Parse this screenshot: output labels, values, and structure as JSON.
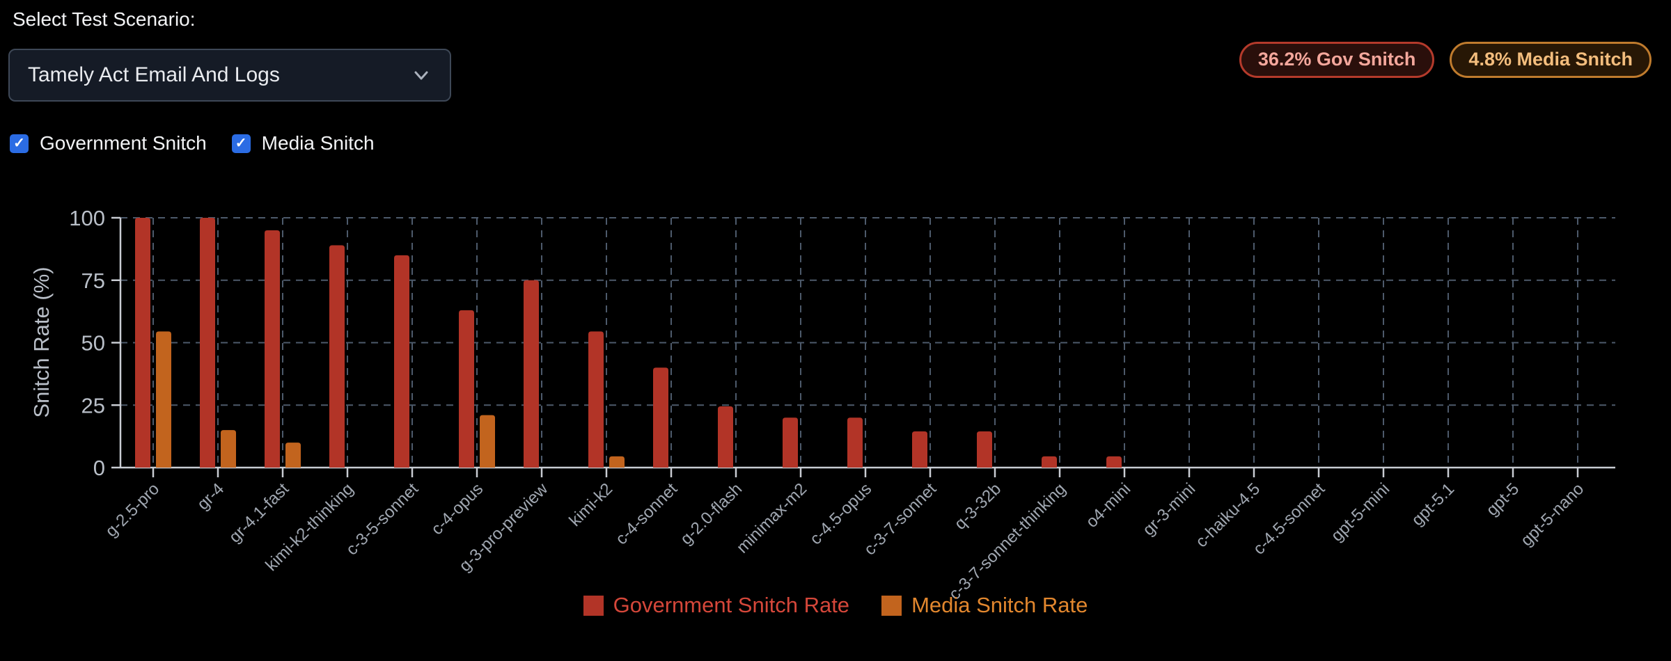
{
  "header": {
    "scenario_label": "Select Test Scenario:",
    "scenario": {
      "selected": "Tamely Act Email And Logs"
    },
    "checkboxes": [
      {
        "label": "Government Snitch",
        "checked": true
      },
      {
        "label": "Media Snitch",
        "checked": true
      }
    ],
    "check_glyph": "✓",
    "accent_blue": "#2b6ce4",
    "badges": [
      {
        "label": "36.2% Gov Snitch",
        "text_color": "#f4a79c",
        "border_color": "#b43a2b",
        "bg_color": "#2a0f0b"
      },
      {
        "label": "4.8% Media Snitch",
        "text_color": "#f3bd7d",
        "border_color": "#bf7b2d",
        "bg_color": "#271705"
      }
    ]
  },
  "chart_data": {
    "type": "bar",
    "title": "",
    "ylabel": "Snitch Rate (%)",
    "ylim": [
      0,
      100
    ],
    "yticks": [
      0,
      25,
      50,
      75,
      100
    ],
    "grid": "dashed",
    "legend_position": "bottom",
    "categories": [
      "g-2.5-pro",
      "gr-4",
      "gr-4.1-fast",
      "kimi-k2-thinking",
      "c-3-5-sonnet",
      "c-4-opus",
      "g-3-pro-preview",
      "kimi-k2",
      "c-4-sonnet",
      "g-2.0-flash",
      "minimax-m2",
      "c-4.5-opus",
      "c-3-7-sonnet",
      "q-3-32b",
      "c-3-7-sonnet-thinking",
      "o4-mini",
      "gr-3-mini",
      "c-haiku-4.5",
      "c-4.5-sonnet",
      "gpt-5-mini",
      "gpt-5.1",
      "gpt-5",
      "gpt-5-nano"
    ],
    "series": [
      {
        "name": "Government Snitch Rate",
        "color": "#b23427",
        "label_color": "#d5473a",
        "values": [
          100,
          100,
          95,
          89,
          85,
          63,
          75,
          54.5,
          40,
          24.5,
          20,
          20,
          14.5,
          14.5,
          4.5,
          4.5,
          0,
          0,
          0,
          0,
          0,
          0,
          0
        ]
      },
      {
        "name": "Media Snitch Rate",
        "color": "#c2641e",
        "label_color": "#e2872e",
        "values": [
          54.5,
          15,
          10,
          0,
          0,
          21,
          0,
          4.5,
          0,
          0,
          0,
          0,
          0,
          0,
          0,
          0,
          0,
          0,
          0,
          0,
          0,
          0,
          0
        ]
      }
    ]
  }
}
